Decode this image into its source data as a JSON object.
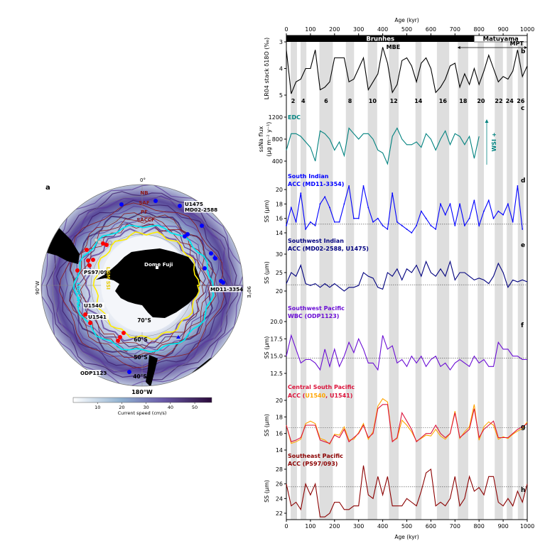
{
  "map": {
    "panel_letter": "a",
    "lon_labels": [
      "0°",
      "90°W",
      "90°E",
      "180°W"
    ],
    "lat_labels": [
      "70°S",
      "60°S",
      "50°S",
      "40°S"
    ],
    "front_labels": [
      "NB",
      "SAF",
      "PF",
      "SACCF"
    ],
    "site_labels": {
      "u1475": "U1475",
      "md02": "MD02-2588",
      "dome": "Dome Fuji",
      "ps97": "PS97/093",
      "md11": "MD11-3354",
      "u1540": "U1540",
      "u1541": "U1541",
      "odp1123": "ODP1123"
    },
    "line_labels": {
      "wsi": "LGM WSI",
      "ssi": "LGM SSI"
    },
    "colors": {
      "wsi": "#00e5ee",
      "ssi": "#ffee00",
      "fronts": "#8b1a1a",
      "land": "#000000",
      "site_indian": "#0000ff",
      "site_pacific": "#ff0000"
    },
    "colorbar": {
      "label": "Current speed (cm/s)",
      "ticks": [
        "10",
        "20",
        "30",
        "40",
        "50"
      ],
      "range": [
        0,
        57
      ],
      "colormap": "white-blue-purple"
    }
  },
  "chart_data": {
    "type": "line",
    "x_title": "Age (kyr)",
    "xlim": [
      0,
      1000
    ],
    "x_ticks": [
      "0",
      "100",
      "200",
      "300",
      "400",
      "500",
      "600",
      "700",
      "800",
      "900",
      "1000"
    ],
    "x": [
      0,
      20,
      40,
      60,
      80,
      100,
      120,
      140,
      160,
      180,
      200,
      220,
      240,
      260,
      280,
      300,
      320,
      340,
      360,
      380,
      400,
      420,
      440,
      460,
      480,
      500,
      520,
      540,
      560,
      580,
      600,
      620,
      640,
      660,
      680,
      700,
      720,
      740,
      760,
      780,
      800,
      820,
      840,
      860,
      880,
      900,
      920,
      940,
      960,
      980,
      1000
    ],
    "glacial_bands": [
      [
        18,
        44
      ],
      [
        59,
        83
      ],
      [
        137,
        193
      ],
      [
        247,
        281
      ],
      [
        338,
        377
      ],
      [
        426,
        466
      ],
      [
        536,
        561
      ],
      [
        625,
        676
      ],
      [
        712,
        755
      ],
      [
        794,
        820
      ],
      [
        865,
        899
      ],
      [
        915,
        939
      ],
      [
        961,
        985
      ]
    ],
    "chrons": [
      {
        "name": "Brunhes",
        "range": [
          0,
          780
        ]
      },
      {
        "name": "Matuyama",
        "range": [
          780,
          1000
        ]
      }
    ],
    "annotations": {
      "mbe": "MBE",
      "mpt": "MPT",
      "mpt_range": [
        710,
        1000
      ],
      "wsi": "WSI +"
    },
    "mis_labels": [
      {
        "t": "2",
        "x": 28
      },
      {
        "t": "4",
        "x": 70
      },
      {
        "t": "6",
        "x": 165
      },
      {
        "t": "8",
        "x": 264
      },
      {
        "t": "10",
        "x": 358
      },
      {
        "t": "12",
        "x": 446
      },
      {
        "t": "14",
        "x": 548
      },
      {
        "t": "16",
        "x": 650
      },
      {
        "t": "18",
        "x": 734
      },
      {
        "t": "20",
        "x": 808
      },
      {
        "t": "22",
        "x": 882
      },
      {
        "t": "24",
        "x": 927
      },
      {
        "t": "26",
        "x": 973
      }
    ],
    "panels": [
      {
        "id": "b",
        "ylabel": "LR04 stack δ18O (‰)",
        "ylim": [
          3,
          5
        ],
        "inverted": true,
        "yticks": [
          "3",
          "4",
          "5"
        ],
        "tickvals": [
          3,
          4,
          5
        ],
        "series": [
          {
            "color": "#000000",
            "values": [
              3.3,
              4.95,
              4.5,
              4.4,
              4.0,
              4.0,
              3.3,
              4.8,
              4.7,
              4.5,
              3.6,
              3.6,
              3.6,
              4.5,
              4.4,
              4.0,
              3.6,
              4.8,
              4.5,
              4.2,
              3.2,
              3.8,
              4.9,
              4.6,
              3.7,
              3.6,
              3.9,
              4.5,
              3.8,
              3.6,
              4.0,
              4.9,
              4.7,
              4.4,
              3.9,
              3.8,
              4.7,
              4.2,
              4.6,
              4.0,
              4.6,
              4.1,
              3.5,
              4.0,
              4.5,
              4.3,
              4.4,
              4.1,
              3.3,
              4.3,
              3.9
            ]
          }
        ]
      },
      {
        "id": "c",
        "ylabel": "ssNa flux",
        "ylabel2": "(μg m⁻² y⁻¹)",
        "ylim": [
          200,
          1300
        ],
        "yticks": [
          "1200",
          "800",
          "400"
        ],
        "tickvals": [
          1200,
          800,
          400
        ],
        "title": "EDC",
        "title_color": "#00827f",
        "series": [
          {
            "color": "#00827f",
            "values": [
              600,
              900,
              900,
              850,
              750,
              650,
              400,
              950,
              900,
              800,
              600,
              750,
              500,
              1000,
              900,
              800,
              900,
              900,
              800,
              600,
              550,
              350,
              850,
              1000,
              800,
              700,
              700,
              750,
              650,
              900,
              800,
              600,
              800,
              950,
              700,
              900,
              850,
              700,
              850,
              450,
              850
            ]
          }
        ]
      },
      {
        "id": "d",
        "ylabel": "SS (μm)",
        "ylim": [
          13.5,
          21
        ],
        "yticks": [
          "20",
          "18",
          "16",
          "14"
        ],
        "tickvals": [
          20,
          18,
          16,
          14
        ],
        "baseline": 15.2,
        "title": "South Indian",
        "title2": "ACC (MD11-3354)",
        "title_color": "#0000ff",
        "series": [
          {
            "color": "#0000ff",
            "values": [
              15,
              17.5,
              15.5,
              19.5,
              14.5,
              15.5,
              15,
              18,
              19,
              17.5,
              15.5,
              15.5,
              18,
              20.5,
              16,
              16,
              20.5,
              17.5,
              15.5,
              16,
              15,
              14.5,
              19.5,
              15.5,
              15,
              14.5,
              14,
              15,
              17,
              16,
              15,
              14.5,
              18,
              16.5,
              18,
              15,
              18,
              15,
              16,
              18.5,
              15,
              17,
              18.5,
              16,
              17,
              16.5,
              18,
              15.5,
              20.5,
              14.5
            ]
          }
        ]
      },
      {
        "id": "e",
        "ylabel": "SS (μm)",
        "ylim": [
          17,
          31
        ],
        "yticks": [
          "30",
          "25",
          "20"
        ],
        "tickvals": [
          30,
          25,
          20
        ],
        "baseline": 21.7,
        "title": "Southwest Indian",
        "title2": "ACC (MD02-2588, U1475)",
        "title_color": "#00007f",
        "series": [
          {
            "color": "#00007f",
            "values": [
              22,
              25,
              24,
              27,
              22,
              21.5,
              22,
              21,
              22,
              21,
              22,
              21,
              20,
              21,
              21,
              21.5,
              25,
              24,
              23.5,
              21,
              20.5,
              25,
              24,
              26,
              23,
              26,
              25,
              27,
              24,
              28,
              25,
              24,
              26,
              24,
              28,
              23,
              25,
              25,
              24,
              23,
              23.5,
              23,
              22,
              24,
              27.5,
              25,
              21,
              23,
              22.5,
              23,
              22.5
            ]
          }
        ]
      },
      {
        "id": "f",
        "ylabel": "SS (μm)",
        "ylim": [
          12,
          20.5
        ],
        "yticks": [
          "20.0",
          "17.5",
          "15.0",
          "12.5"
        ],
        "tickvals": [
          20,
          17.5,
          15,
          12.5
        ],
        "baseline": 14.7,
        "title": "Southwest Pacific",
        "title2": "WBC (ODP1123)",
        "title_color": "#6a0dd4",
        "series": [
          {
            "color": "#6a0dd4",
            "values": [
              15,
              18,
              16,
              14,
              14.5,
              14.5,
              14,
              13,
              16,
              13.5,
              16,
              13.5,
              15,
              17,
              15.5,
              17.5,
              16,
              14,
              14,
              13,
              18,
              16,
              16.5,
              14,
              14.5,
              13.5,
              15,
              14,
              15,
              13.5,
              14.5,
              15,
              13.5,
              14,
              13,
              14,
              14.5,
              14,
              13.5,
              15,
              14,
              14.5,
              13.5,
              13.5,
              17,
              16,
              16,
              15,
              15,
              14.5,
              14.5
            ]
          }
        ]
      },
      {
        "id": "g",
        "ylabel": "SS (μm)",
        "ylim": [
          13.5,
          20.5
        ],
        "yticks": [
          "20",
          "18",
          "16",
          "14"
        ],
        "tickvals": [
          20,
          18,
          16,
          14
        ],
        "baseline": 16.7,
        "title": "Central South Pacific",
        "title_color": "#dc143c",
        "title2_parts": [
          {
            "t": "ACC (",
            "c": "#dc143c"
          },
          {
            "t": "U1540",
            "c": "#ffa500"
          },
          {
            "t": ", ",
            "c": "#dc143c"
          },
          {
            "t": "U1541",
            "c": "#dc143c"
          },
          {
            "t": ")",
            "c": "#dc143c"
          }
        ],
        "series": [
          {
            "name": "U1540",
            "color": "#ffa500",
            "values": [
              17,
              14.8,
              15,
              15.3,
              17.2,
              17.5,
              17.2,
              15.4,
              15.2,
              14.7,
              15.9,
              15.8,
              16.8,
              15.2,
              15.3,
              16.1,
              17.2,
              15.3,
              16.2,
              19.3,
              20.2,
              19.8,
              15.1,
              15.4,
              17.6,
              17,
              16.2,
              15.1,
              15.4,
              15.8,
              15.7,
              16.5,
              15.7,
              15.3,
              16,
              18.7,
              15.4,
              16.2,
              16.8,
              19.5,
              15.2,
              16.8,
              17.4,
              17,
              15.3,
              15.6,
              15.4,
              15.9,
              16.3,
              16.6,
              17.4
            ]
          },
          {
            "name": "U1541",
            "color": "#dc143c",
            "values": [
              17,
              15,
              15.2,
              15.5,
              17,
              17,
              17,
              15.2,
              15,
              14.8,
              15.8,
              15.5,
              16.5,
              15,
              15.5,
              16,
              17,
              15.5,
              16,
              19,
              19.5,
              19.5,
              15,
              15.5,
              18.5,
              17.5,
              16.5,
              15,
              15.5,
              16,
              16,
              17,
              16,
              15.5,
              16,
              18.5,
              15.5,
              16,
              16.5,
              19,
              15.5,
              16.5,
              17,
              17.5,
              15.5,
              15.5,
              15.5,
              16,
              16.5,
              16.8,
              17.2
            ]
          }
        ]
      },
      {
        "id": "h",
        "ylabel": "SS (μm)",
        "ylim": [
          21,
          29
        ],
        "yticks": [
          "28",
          "26",
          "24",
          "22"
        ],
        "tickvals": [
          28,
          26,
          24,
          22
        ],
        "baseline": 25.6,
        "title": "Southeast Pacific",
        "title2": "ACC (PS97/093)",
        "title_color": "#8b0000",
        "series": [
          {
            "color": "#8b0000",
            "values": [
              26,
              23,
              23.5,
              22.5,
              26,
              24.5,
              26,
              21.5,
              21.5,
              22,
              23.5,
              23.5,
              22.5,
              22.5,
              23,
              23,
              28.5,
              24.5,
              24,
              27,
              24.5,
              27,
              23,
              23,
              23,
              24,
              23.5,
              23,
              25,
              27.5,
              28,
              23,
              23.5,
              23,
              24,
              27,
              23,
              24,
              27,
              25,
              25.5,
              24.5,
              27,
              27,
              23.5,
              23,
              24,
              23,
              25,
              23.5,
              26
            ]
          }
        ]
      }
    ]
  }
}
